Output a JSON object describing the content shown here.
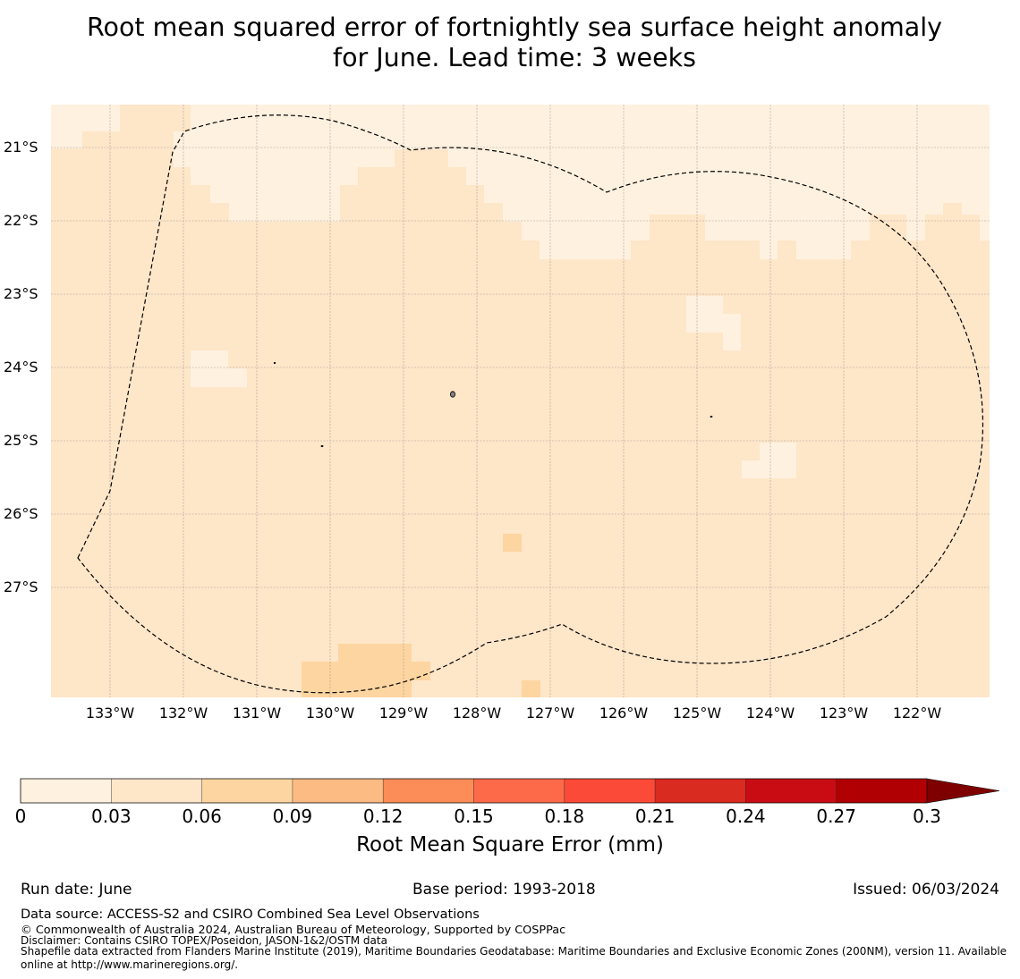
{
  "title": {
    "line1": "Root mean squared error of fortnightly sea surface height anomaly",
    "line2": "for June. Lead time: 3 weeks"
  },
  "map": {
    "lat_labels": [
      "21°S",
      "22°S",
      "23°S",
      "24°S",
      "25°S",
      "26°S",
      "27°S"
    ],
    "lon_labels": [
      "133°W",
      "132°W",
      "131°W",
      "130°W",
      "129°W",
      "128°W",
      "127°W",
      "126°W",
      "125°W",
      "124°W",
      "123°W",
      "122°W"
    ],
    "background_color": "#fee6c9",
    "colors": {
      "bin_0_003": "#fff1df",
      "bin_003_006": "#fee6c9",
      "bin_006_009": "#fdd5a0",
      "coastline": "#000000",
      "eez_boundary": "#000000",
      "gridline": "#808080"
    },
    "boundary_style": "dashed",
    "gridlines": true
  },
  "colorbar": {
    "ticks": [
      "0",
      "0.03",
      "0.06",
      "0.09",
      "0.12",
      "0.15",
      "0.18",
      "0.21",
      "0.24",
      "0.27",
      "0.3"
    ],
    "colors": [
      "#fff1df",
      "#fee6c9",
      "#fdd5a0",
      "#fdbb84",
      "#fc8d59",
      "#fd6a4a",
      "#fb4b38",
      "#d92b20",
      "#c90c14",
      "#b10003",
      "#7f0000"
    ],
    "extend": "max",
    "label": "Root Mean Square Error (mm)"
  },
  "footer": {
    "run_date": "Run date: June",
    "base_period": "Base period: 1993-2018",
    "issued": "Issued: 06/03/2024",
    "data_source": "Data source: ACCESS-S2 and CSIRO Combined Sea Level Observations",
    "copyright": "© Commonwealth of Australia 2024, Australian Bureau of Meteorology, Supported by COSPPac",
    "disclaimer": "Disclaimer: Contains CSIRO TOPEX/Poseidon, JASON-1&2/OSTM data",
    "shapefile_line1": "Shapefile data extracted from Flanders Marine Institute (2019), Maritime Boundaries Geodatabase: Maritime Boundaries and Exclusive Economic Zones (200NM), version 11. Available",
    "shapefile_line2": "online at http://www.marineregions.org/."
  }
}
